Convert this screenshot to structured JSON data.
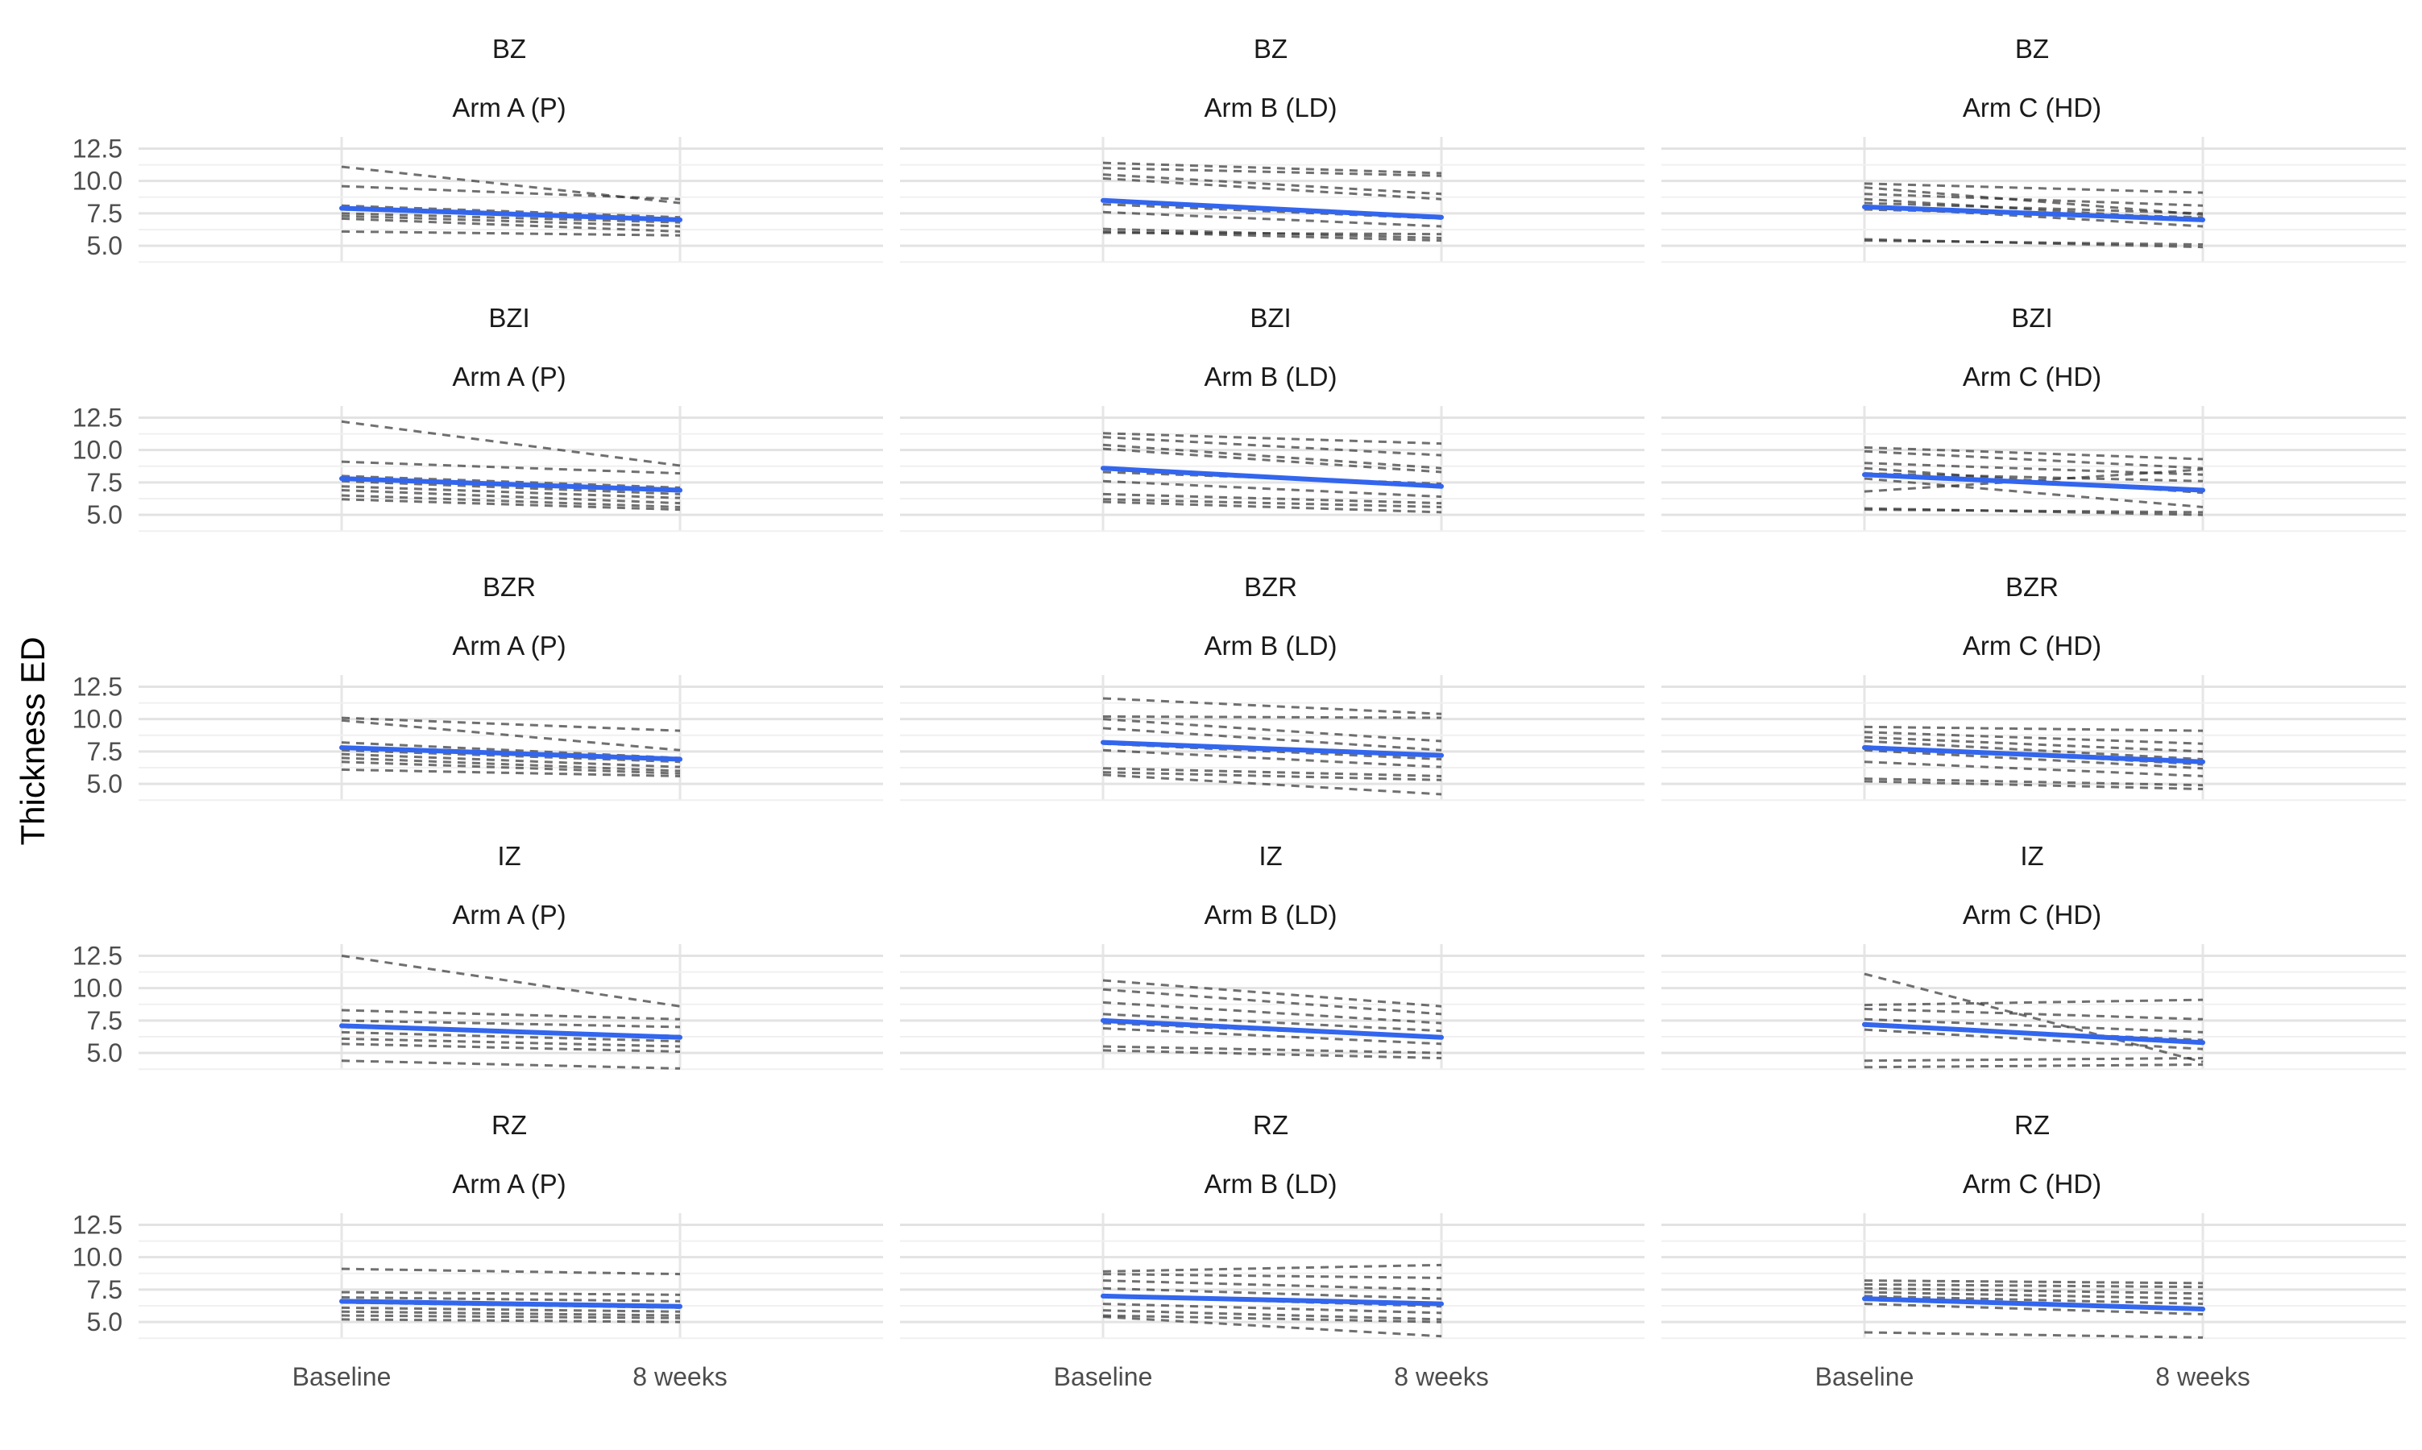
{
  "chart_data": {
    "type": "line",
    "ylabel": "Thickness ED",
    "xlabel": "",
    "x_categories": [
      "Baseline",
      "8 weeks"
    ],
    "y_ticks": [
      "5.0",
      "7.5",
      "10.0",
      "12.5"
    ],
    "ylim": [
      3.7,
      13.4
    ],
    "grid": true,
    "trend_color": "#3366ee",
    "subject_line_color": "#333333",
    "zones": [
      "BZ",
      "BZI",
      "BZR",
      "IZ",
      "RZ"
    ],
    "arms": [
      "Arm A (P)",
      "Arm B (LD)",
      "Arm C (HD)"
    ],
    "panels": [
      {
        "zone": "BZ",
        "arm": "Arm A (P)",
        "mean": [
          7.9,
          7.0
        ],
        "subjects": [
          [
            11.1,
            8.3
          ],
          [
            9.6,
            8.6
          ],
          [
            8.1,
            7.2
          ],
          [
            7.8,
            7.0
          ],
          [
            7.5,
            6.8
          ],
          [
            7.3,
            6.5
          ],
          [
            7.1,
            6.1
          ],
          [
            6.1,
            5.8
          ]
        ]
      },
      {
        "zone": "BZ",
        "arm": "Arm B (LD)",
        "mean": [
          8.5,
          7.2
        ],
        "subjects": [
          [
            11.4,
            10.6
          ],
          [
            11.0,
            10.4
          ],
          [
            10.5,
            9.0
          ],
          [
            10.2,
            8.6
          ],
          [
            8.2,
            7.1
          ],
          [
            7.6,
            6.5
          ],
          [
            6.3,
            5.6
          ],
          [
            6.1,
            5.4
          ],
          [
            6.0,
            5.9
          ]
        ]
      },
      {
        "zone": "BZ",
        "arm": "Arm C (HD)",
        "mean": [
          8.0,
          7.0
        ],
        "subjects": [
          [
            9.8,
            9.1
          ],
          [
            9.5,
            7.4
          ],
          [
            9.0,
            8.1
          ],
          [
            8.6,
            7.0
          ],
          [
            8.3,
            7.5
          ],
          [
            8.0,
            6.5
          ],
          [
            7.8,
            7.2
          ],
          [
            5.5,
            4.9
          ],
          [
            5.4,
            5.1
          ]
        ]
      },
      {
        "zone": "BZI",
        "arm": "Arm A (P)",
        "mean": [
          7.8,
          6.9
        ],
        "subjects": [
          [
            12.2,
            8.8
          ],
          [
            9.1,
            8.2
          ],
          [
            8.0,
            7.1
          ],
          [
            7.6,
            6.6
          ],
          [
            7.2,
            6.3
          ],
          [
            6.9,
            5.9
          ],
          [
            6.5,
            5.6
          ],
          [
            6.2,
            5.4
          ]
        ]
      },
      {
        "zone": "BZI",
        "arm": "Arm B (LD)",
        "mean": [
          8.6,
          7.2
        ],
        "subjects": [
          [
            11.3,
            10.5
          ],
          [
            11.0,
            9.6
          ],
          [
            10.4,
            8.6
          ],
          [
            10.1,
            8.3
          ],
          [
            8.3,
            7.4
          ],
          [
            7.6,
            6.4
          ],
          [
            6.6,
            5.9
          ],
          [
            6.2,
            5.6
          ],
          [
            6.0,
            5.2
          ]
        ]
      },
      {
        "zone": "BZI",
        "arm": "Arm C (HD)",
        "mean": [
          8.1,
          6.9
        ],
        "subjects": [
          [
            10.2,
            9.3
          ],
          [
            9.9,
            8.6
          ],
          [
            9.0,
            8.1
          ],
          [
            8.6,
            6.7
          ],
          [
            8.2,
            7.6
          ],
          [
            7.8,
            5.6
          ],
          [
            6.8,
            8.5
          ],
          [
            5.5,
            5.0
          ],
          [
            5.4,
            5.2
          ]
        ]
      },
      {
        "zone": "BZR",
        "arm": "Arm A (P)",
        "mean": [
          7.8,
          6.9
        ],
        "subjects": [
          [
            10.1,
            9.1
          ],
          [
            9.9,
            7.6
          ],
          [
            8.2,
            7.0
          ],
          [
            7.6,
            6.7
          ],
          [
            7.3,
            6.3
          ],
          [
            7.0,
            6.0
          ],
          [
            6.7,
            5.8
          ],
          [
            6.1,
            5.6
          ]
        ]
      },
      {
        "zone": "BZR",
        "arm": "Arm B (LD)",
        "mean": [
          8.2,
          7.2
        ],
        "subjects": [
          [
            11.6,
            10.4
          ],
          [
            10.2,
            10.1
          ],
          [
            10.0,
            8.3
          ],
          [
            9.3,
            7.6
          ],
          [
            8.1,
            6.9
          ],
          [
            7.6,
            6.3
          ],
          [
            6.2,
            5.6
          ],
          [
            5.9,
            5.3
          ],
          [
            5.7,
            4.2
          ]
        ]
      },
      {
        "zone": "BZR",
        "arm": "Arm C (HD)",
        "mean": [
          7.8,
          6.7
        ],
        "subjects": [
          [
            9.4,
            9.1
          ],
          [
            9.0,
            8.1
          ],
          [
            8.6,
            7.5
          ],
          [
            8.3,
            6.9
          ],
          [
            7.9,
            6.5
          ],
          [
            7.6,
            6.2
          ],
          [
            6.7,
            5.6
          ],
          [
            5.4,
            4.9
          ],
          [
            5.2,
            4.6
          ]
        ]
      },
      {
        "zone": "IZ",
        "arm": "Arm A (P)",
        "mean": [
          7.1,
          6.2
        ],
        "subjects": [
          [
            12.5,
            8.6
          ],
          [
            8.3,
            7.6
          ],
          [
            7.5,
            7.0
          ],
          [
            7.0,
            6.3
          ],
          [
            6.6,
            5.9
          ],
          [
            6.1,
            5.5
          ],
          [
            5.7,
            5.1
          ],
          [
            4.4,
            3.8
          ]
        ]
      },
      {
        "zone": "IZ",
        "arm": "Arm B (LD)",
        "mean": [
          7.5,
          6.2
        ],
        "subjects": [
          [
            10.6,
            8.6
          ],
          [
            9.9,
            8.0
          ],
          [
            8.9,
            7.3
          ],
          [
            8.0,
            6.7
          ],
          [
            7.3,
            6.2
          ],
          [
            6.9,
            5.7
          ],
          [
            5.5,
            5.0
          ],
          [
            5.2,
            4.6
          ]
        ]
      },
      {
        "zone": "IZ",
        "arm": "Arm C (HD)",
        "mean": [
          7.2,
          5.8
        ],
        "subjects": [
          [
            11.1,
            4.3
          ],
          [
            8.7,
            9.1
          ],
          [
            8.4,
            7.6
          ],
          [
            7.6,
            6.6
          ],
          [
            7.1,
            6.0
          ],
          [
            6.8,
            5.3
          ],
          [
            4.4,
            4.6
          ],
          [
            3.9,
            4.1
          ]
        ]
      },
      {
        "zone": "RZ",
        "arm": "Arm A (P)",
        "mean": [
          6.6,
          6.2
        ],
        "subjects": [
          [
            9.1,
            8.7
          ],
          [
            7.3,
            7.1
          ],
          [
            6.9,
            6.6
          ],
          [
            6.5,
            6.1
          ],
          [
            6.1,
            5.8
          ],
          [
            5.8,
            5.5
          ],
          [
            5.5,
            5.3
          ],
          [
            5.2,
            5.0
          ]
        ]
      },
      {
        "zone": "RZ",
        "arm": "Arm B (LD)",
        "mean": [
          7.0,
          6.4
        ],
        "subjects": [
          [
            8.9,
            9.4
          ],
          [
            8.7,
            8.4
          ],
          [
            8.2,
            7.5
          ],
          [
            7.6,
            6.8
          ],
          [
            7.0,
            6.2
          ],
          [
            6.4,
            5.7
          ],
          [
            5.9,
            5.2
          ],
          [
            5.5,
            5.0
          ],
          [
            5.4,
            3.9
          ]
        ]
      },
      {
        "zone": "RZ",
        "arm": "Arm C (HD)",
        "mean": [
          6.8,
          6.0
        ],
        "subjects": [
          [
            8.2,
            8.0
          ],
          [
            7.9,
            7.7
          ],
          [
            7.6,
            7.2
          ],
          [
            7.3,
            6.8
          ],
          [
            7.0,
            6.4
          ],
          [
            6.7,
            6.0
          ],
          [
            6.4,
            5.6
          ],
          [
            4.2,
            3.8
          ]
        ]
      }
    ]
  }
}
